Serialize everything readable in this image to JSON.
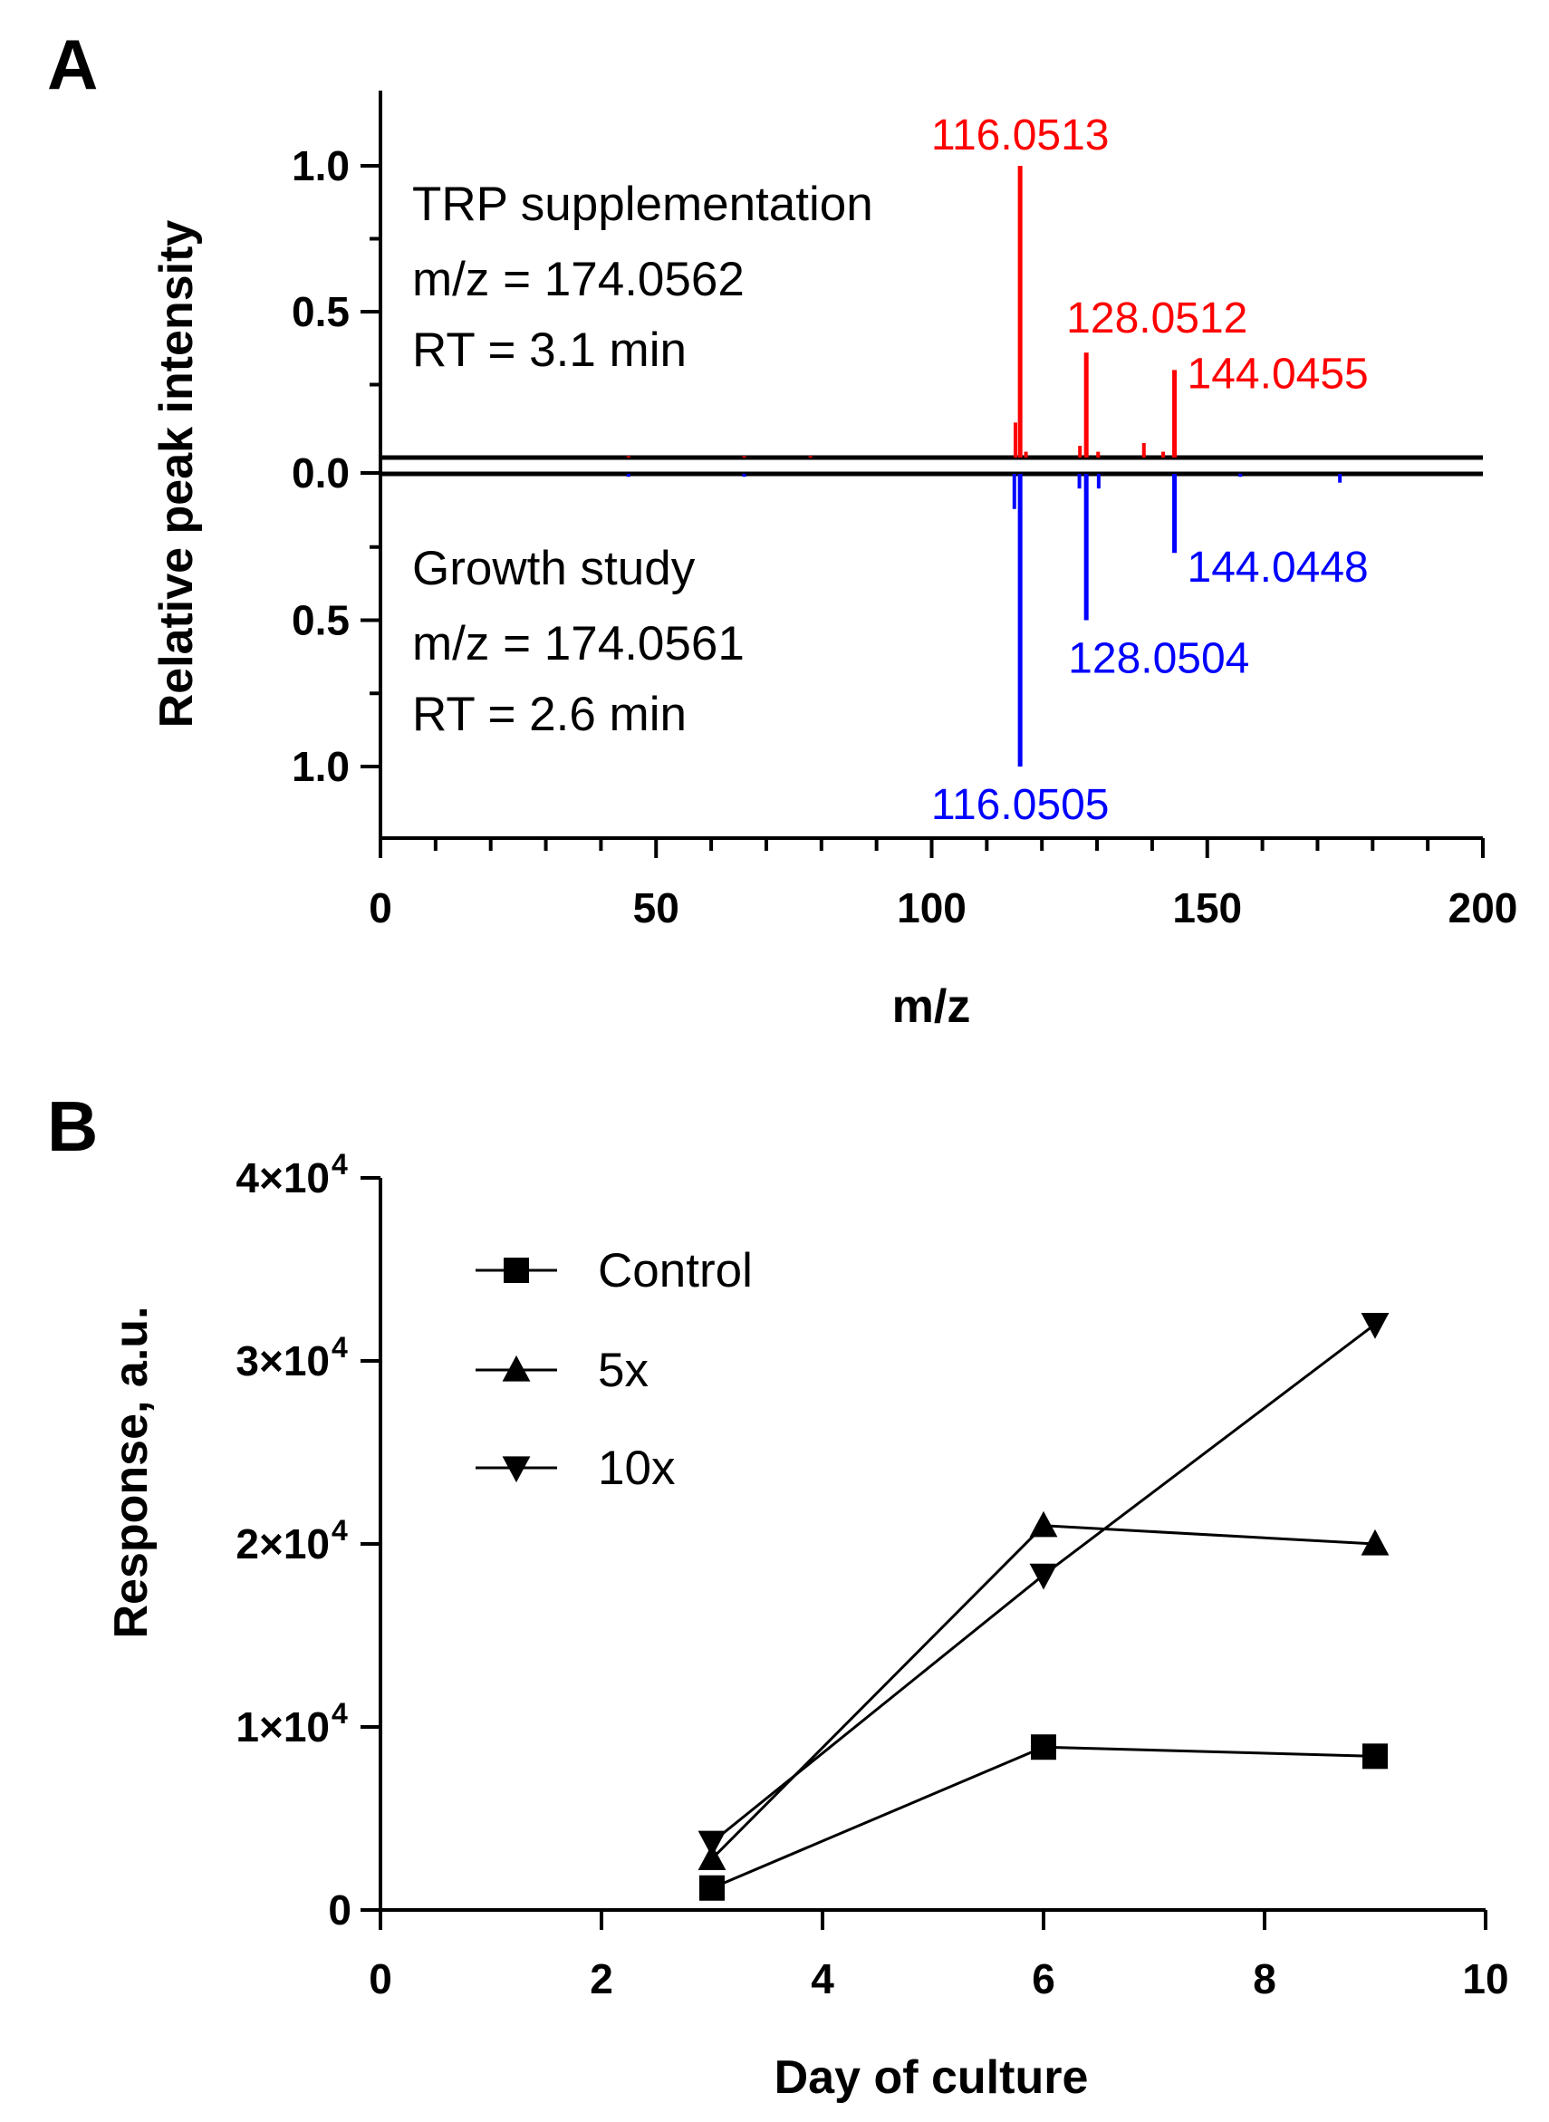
{
  "chart_data": [
    {
      "panel": "A",
      "type": "bar",
      "subtype": "mirror-mass-spectrum",
      "xlabel": "m/z",
      "ylabel": "Relative peak intensity",
      "xlim": [
        0,
        200
      ],
      "x_ticks": [
        "0",
        "50",
        "100",
        "150",
        "200"
      ],
      "y_ticks_top": [
        "1.0",
        "0.5"
      ],
      "y_tick_zero": "0.0",
      "y_ticks_bottom": [
        "0.5",
        "1.0"
      ],
      "color_top": "#ff0000",
      "color_bottom": "#0000ff",
      "top": {
        "name": "TRP supplementation",
        "lines": [
          "TRP supplementation",
          "m/z = 174.0562",
          "RT = 3.1 min"
        ],
        "peaks": [
          {
            "mz": 45,
            "intensity": 0.005
          },
          {
            "mz": 66,
            "intensity": 0.005
          },
          {
            "mz": 78,
            "intensity": 0.005
          },
          {
            "mz": 115.2,
            "intensity": 0.12
          },
          {
            "mz": 116.05,
            "intensity": 1.0
          },
          {
            "mz": 117.1,
            "intensity": 0.02
          },
          {
            "mz": 126.9,
            "intensity": 0.04
          },
          {
            "mz": 128.05,
            "intensity": 0.36
          },
          {
            "mz": 130.2,
            "intensity": 0.02
          },
          {
            "mz": 138.5,
            "intensity": 0.05
          },
          {
            "mz": 142.0,
            "intensity": 0.02
          },
          {
            "mz": 144.05,
            "intensity": 0.3
          }
        ],
        "labels": [
          {
            "mz": 116.05,
            "text": "116.0513"
          },
          {
            "mz": 128.05,
            "text": "128.0512"
          },
          {
            "mz": 144.05,
            "text": "144.0455"
          }
        ]
      },
      "bottom": {
        "name": "Growth study",
        "lines": [
          "Growth study",
          "m/z = 174.0561",
          "RT = 2.6 min"
        ],
        "peaks": [
          {
            "mz": 45,
            "intensity": 0.01
          },
          {
            "mz": 66,
            "intensity": 0.01
          },
          {
            "mz": 115.0,
            "intensity": 0.12
          },
          {
            "mz": 116.05,
            "intensity": 1.0
          },
          {
            "mz": 126.8,
            "intensity": 0.05
          },
          {
            "mz": 128.05,
            "intensity": 0.5
          },
          {
            "mz": 130.3,
            "intensity": 0.05
          },
          {
            "mz": 144.05,
            "intensity": 0.27
          },
          {
            "mz": 156.0,
            "intensity": 0.01
          },
          {
            "mz": 174.06,
            "intensity": 0.03
          }
        ],
        "labels": [
          {
            "mz": 116.05,
            "text": "116.0505"
          },
          {
            "mz": 128.05,
            "text": "128.0504"
          },
          {
            "mz": 144.05,
            "text": "144.0448"
          }
        ]
      }
    },
    {
      "panel": "B",
      "type": "line",
      "xlabel": "Day of culture",
      "ylabel": "Response, a.u.",
      "xlim": [
        0,
        10
      ],
      "ylim": [
        0,
        40000
      ],
      "x_ticks": [
        "0",
        "2",
        "4",
        "6",
        "8",
        "10"
      ],
      "y_ticks": [
        {
          "value": 0,
          "label": "0"
        },
        {
          "value": 10000,
          "mant": "1×10",
          "exp": "4"
        },
        {
          "value": 20000,
          "mant": "2×10",
          "exp": "4"
        },
        {
          "value": 30000,
          "mant": "3×10",
          "exp": "4"
        },
        {
          "value": 40000,
          "mant": "4×10",
          "exp": "4"
        }
      ],
      "x": [
        3,
        6,
        9
      ],
      "series": [
        {
          "name": "Control",
          "marker": "square",
          "values": [
            1200,
            8900,
            8400
          ]
        },
        {
          "name": "5x",
          "marker": "triangle-up",
          "values": [
            2800,
            21000,
            20000
          ]
        },
        {
          "name": "10x",
          "marker": "triangle-down",
          "values": [
            3700,
            18300,
            32000
          ]
        }
      ]
    }
  ]
}
